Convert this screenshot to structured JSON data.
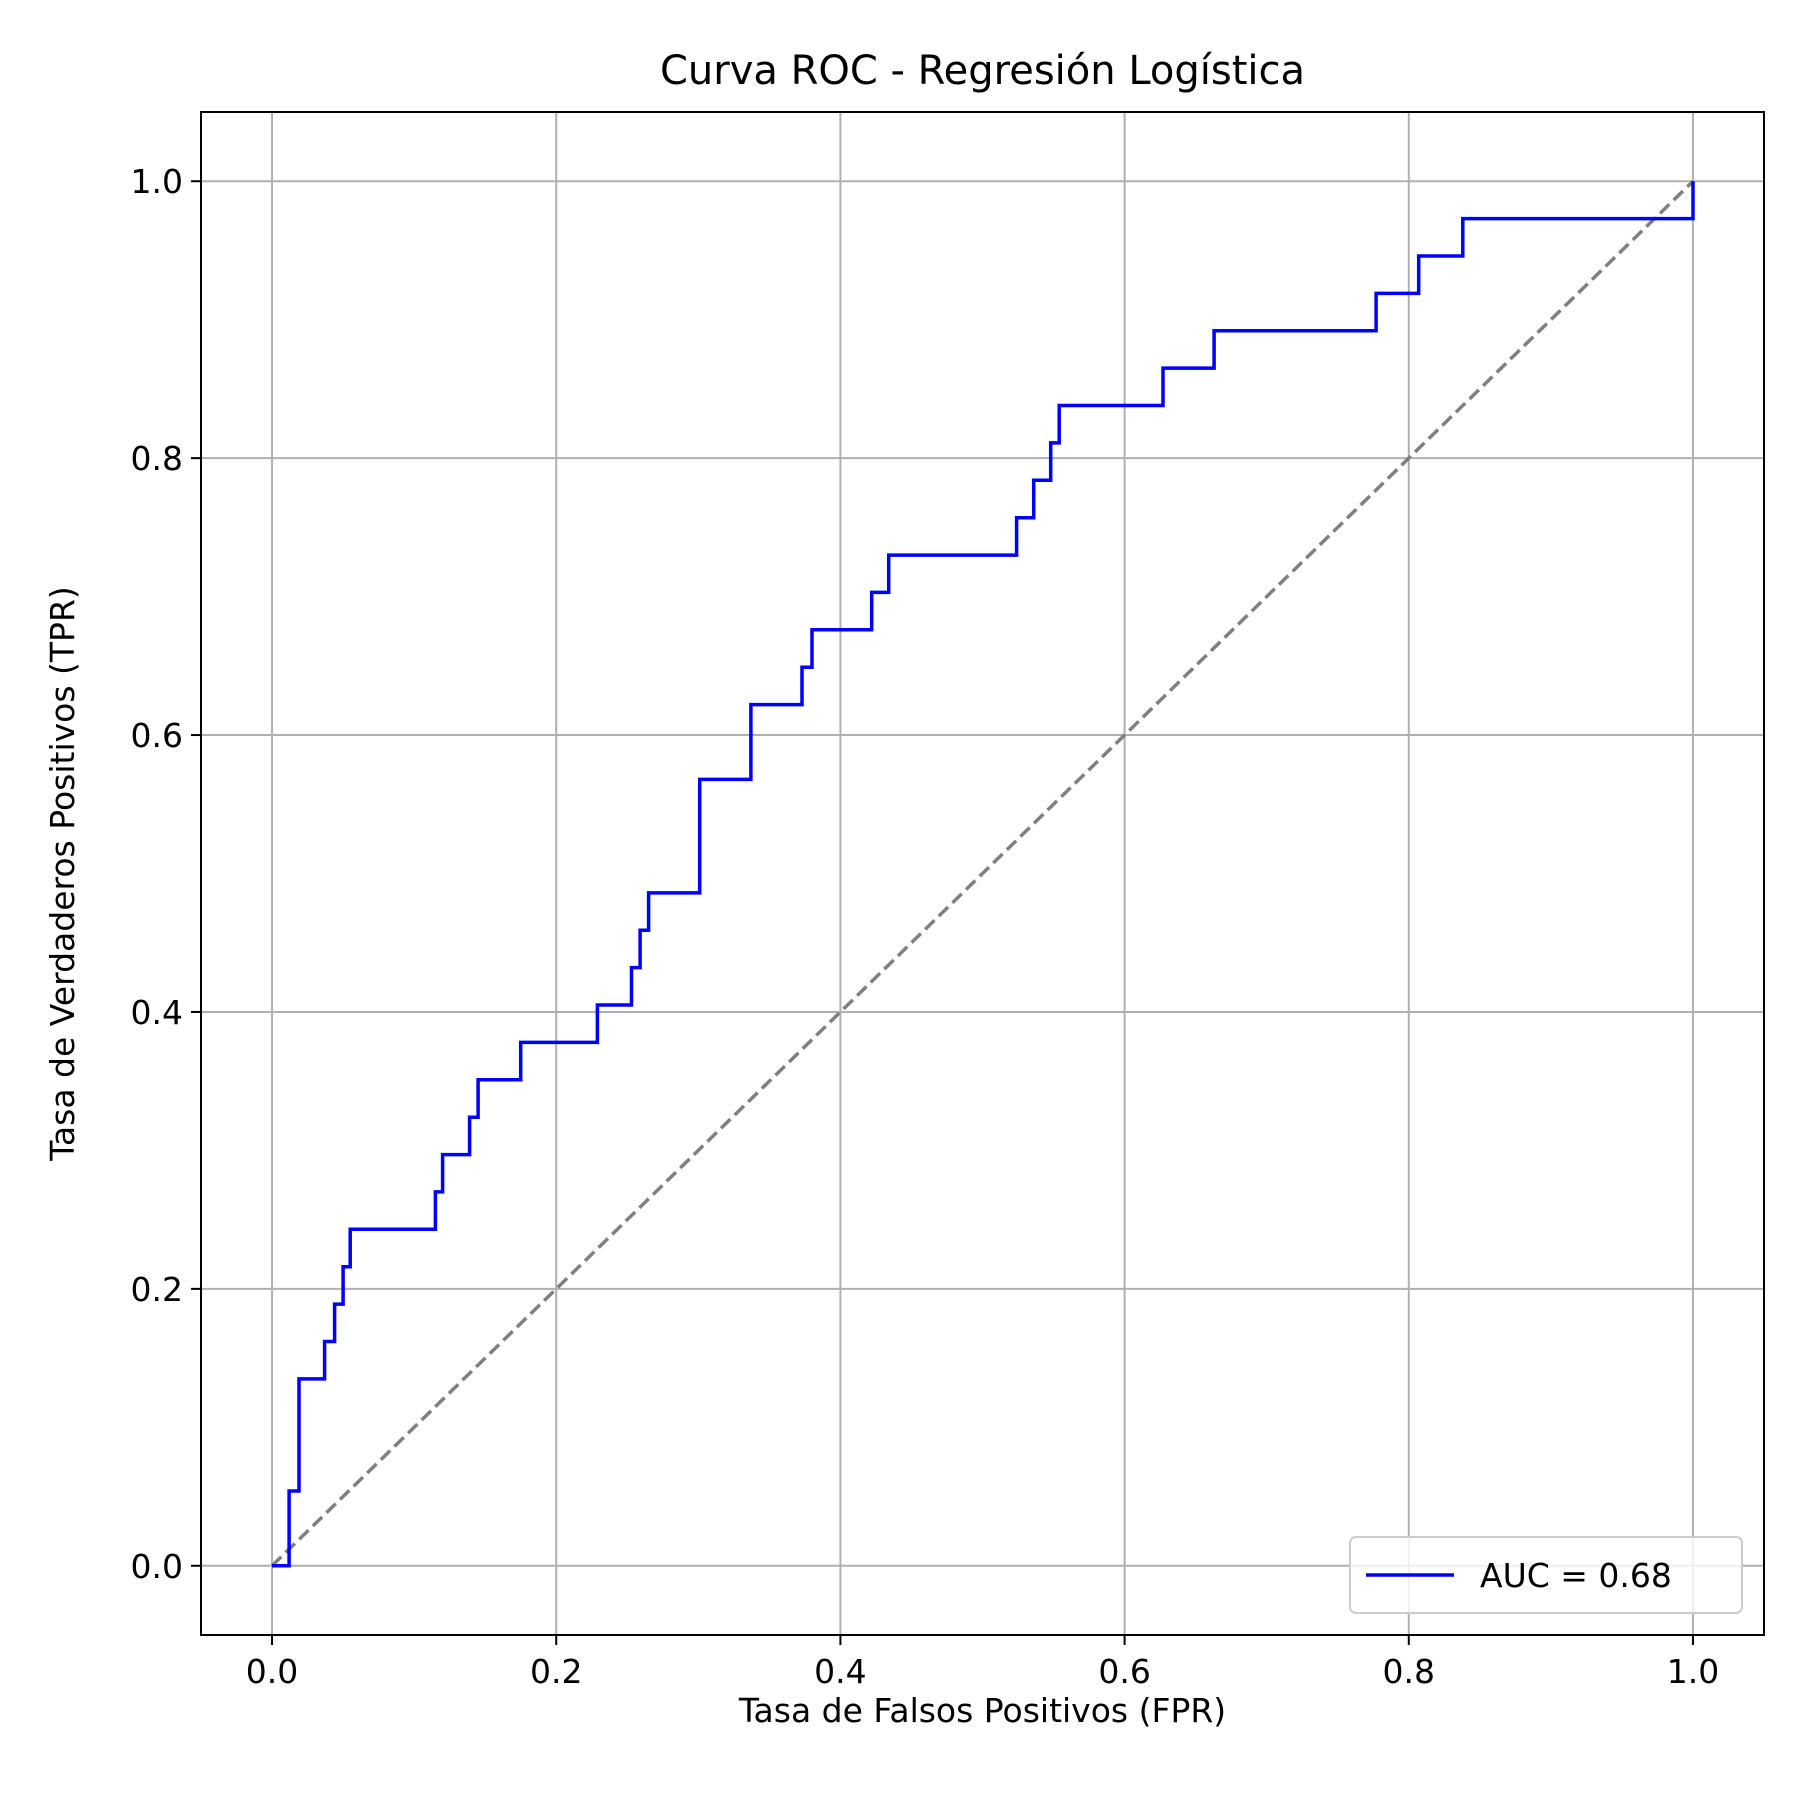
{
  "chart_data": {
    "type": "line",
    "title": "Curva ROC - Regresión Logística",
    "xlabel": "Tasa de Falsos Positivos (FPR)",
    "ylabel": "Tasa de Verdaderos Positivos (TPR)",
    "xlim": [
      -0.05,
      1.05
    ],
    "ylim": [
      -0.05,
      1.05
    ],
    "xticks": [
      0.0,
      0.2,
      0.4,
      0.6,
      0.8,
      1.0
    ],
    "yticks": [
      0.0,
      0.2,
      0.4,
      0.6,
      0.8,
      1.0
    ],
    "xtick_labels": [
      "0.0",
      "0.2",
      "0.4",
      "0.6",
      "0.8",
      "1.0"
    ],
    "ytick_labels": [
      "0.0",
      "0.2",
      "0.4",
      "0.6",
      "0.8",
      "1.0"
    ],
    "grid": true,
    "legend_position": "lower right",
    "series": [
      {
        "name": "AUC = 0.68",
        "color": "#0000ff",
        "style": "solid",
        "x": [
          0.0,
          0.012,
          0.012,
          0.019,
          0.019,
          0.037,
          0.037,
          0.044,
          0.044,
          0.05,
          0.05,
          0.055,
          0.055,
          0.115,
          0.115,
          0.12,
          0.12,
          0.139,
          0.139,
          0.145,
          0.145,
          0.175,
          0.175,
          0.229,
          0.229,
          0.253,
          0.253,
          0.259,
          0.259,
          0.265,
          0.265,
          0.301,
          0.301,
          0.337,
          0.337,
          0.373,
          0.373,
          0.38,
          0.38,
          0.422,
          0.422,
          0.434,
          0.434,
          0.524,
          0.524,
          0.536,
          0.536,
          0.548,
          0.548,
          0.554,
          0.554,
          0.627,
          0.627,
          0.663,
          0.663,
          0.777,
          0.777,
          0.807,
          0.807,
          0.838,
          0.838,
          1.0,
          1.0
        ],
        "y": [
          0.0,
          0.0,
          0.054,
          0.054,
          0.135,
          0.135,
          0.162,
          0.162,
          0.189,
          0.189,
          0.216,
          0.216,
          0.243,
          0.243,
          0.27,
          0.27,
          0.297,
          0.297,
          0.324,
          0.324,
          0.351,
          0.351,
          0.378,
          0.378,
          0.405,
          0.405,
          0.432,
          0.432,
          0.459,
          0.459,
          0.486,
          0.486,
          0.568,
          0.568,
          0.622,
          0.622,
          0.649,
          0.649,
          0.676,
          0.676,
          0.703,
          0.703,
          0.73,
          0.73,
          0.757,
          0.757,
          0.784,
          0.784,
          0.811,
          0.811,
          0.838,
          0.838,
          0.865,
          0.865,
          0.892,
          0.892,
          0.919,
          0.919,
          0.946,
          0.946,
          0.973,
          0.973,
          1.0
        ]
      },
      {
        "name": "",
        "color": "#808080",
        "style": "dashed",
        "x": [
          0.0,
          1.0
        ],
        "y": [
          0.0,
          1.0
        ]
      }
    ]
  }
}
